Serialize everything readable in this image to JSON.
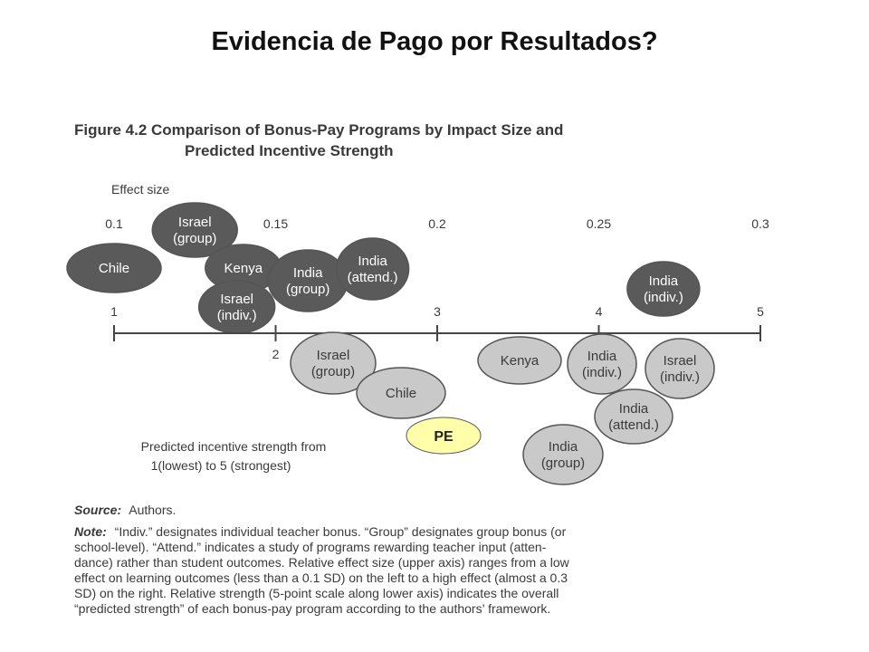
{
  "slide": {
    "title": "Evidencia de Pago por Resultados?"
  },
  "figure": {
    "title_line1": "Figure 4.2  Comparison of Bonus-Pay Programs by Impact Size and",
    "title_line2": "Predicted Incentive Strength",
    "source_label": "Source:",
    "source_text": "Authors.",
    "note_label": "Note:",
    "note_lines": [
      "“Indiv.” designates individual teacher bonus. “Group” designates group bonus (or",
      "school-level). “Attend.” indicates a study of programs rewarding teacher input (atten-",
      "dance) rather than student outcomes. Relative effect size (upper axis) ranges from a low",
      "effect on learning outcomes (less than a 0.1 SD) on the left to a high effect (almost a 0.3",
      "SD) on the right. Relative strength (5-point scale along lower axis) indicates the overall",
      "“predicted strength” of each bonus-pay program according to the authors’ framework."
    ]
  },
  "colors": {
    "dark_bubble": "#5a5a5a",
    "light_bubble": "#c9c9c9",
    "highlight_bubble": "#ffffaa",
    "axis": "#444444",
    "text": "#3a3a3a"
  },
  "chart_data": {
    "type": "scatter",
    "upper_axis": {
      "label": "Effect size",
      "ticks": [
        "0.1",
        "0.15",
        "0.2",
        "0.25",
        "0.3"
      ],
      "range": [
        0.1,
        0.3
      ]
    },
    "lower_axis": {
      "label_lines": [
        "Predicted incentive strength from",
        "1(lowest) to 5 (strongest)"
      ],
      "ticks": [
        "1",
        "2",
        "3",
        "4",
        "5"
      ],
      "range": [
        1,
        5
      ]
    },
    "effect_size_series": [
      {
        "label_lines": [
          "Chile"
        ],
        "effect_size": 0.1
      },
      {
        "label_lines": [
          "Israel",
          "(group)"
        ],
        "effect_size": 0.125
      },
      {
        "label_lines": [
          "Kenya"
        ],
        "effect_size": 0.14
      },
      {
        "label_lines": [
          "Israel",
          "(indiv.)"
        ],
        "effect_size": 0.138
      },
      {
        "label_lines": [
          "India",
          "(group)"
        ],
        "effect_size": 0.16
      },
      {
        "label_lines": [
          "India",
          "(attend.)"
        ],
        "effect_size": 0.18
      },
      {
        "label_lines": [
          "India",
          "(indiv.)"
        ],
        "effect_size": 0.27
      }
    ],
    "strength_series": [
      {
        "label_lines": [
          "Israel",
          "(group)"
        ],
        "strength": 2.5
      },
      {
        "label_lines": [
          "Chile"
        ],
        "strength": 2.8
      },
      {
        "label_lines": [
          "Kenya"
        ],
        "strength": 3.5
      },
      {
        "label_lines": [
          "India",
          "(indiv.)"
        ],
        "strength": 4.0
      },
      {
        "label_lines": [
          "Israel",
          "(indiv.)"
        ],
        "strength": 4.4
      },
      {
        "label_lines": [
          "India",
          "(attend.)"
        ],
        "strength": 4.1
      },
      {
        "label_lines": [
          "India",
          "(group)"
        ],
        "strength": 3.75
      }
    ],
    "highlight": {
      "label": "PE",
      "strength": 2.9
    }
  }
}
